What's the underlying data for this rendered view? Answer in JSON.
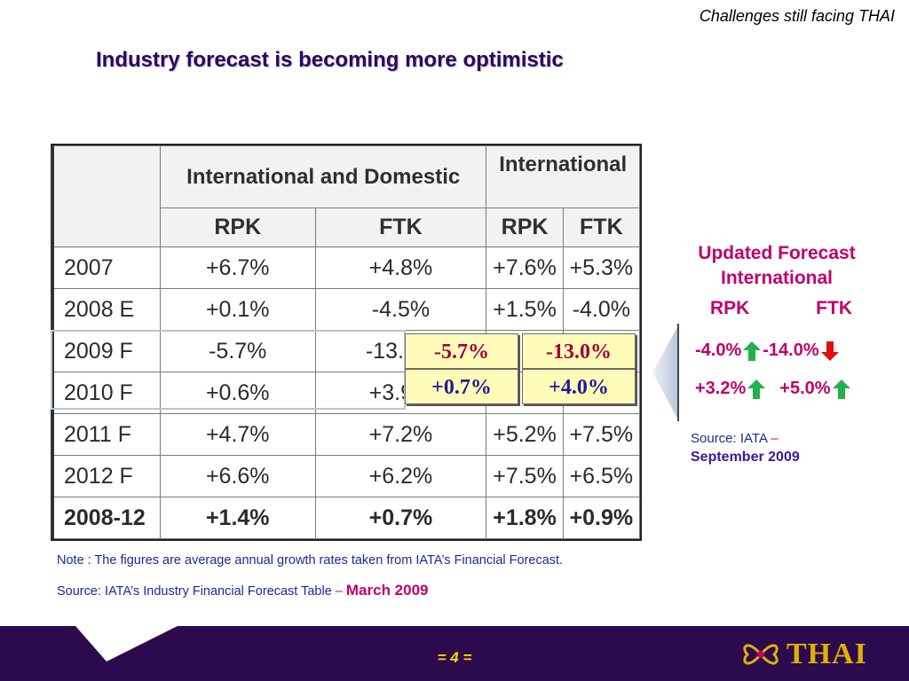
{
  "header": {
    "section_note": "Challenges still facing THAI",
    "title": "Industry forecast is becoming more optimistic"
  },
  "table": {
    "group_headers": [
      "International and Domestic",
      "International"
    ],
    "sub_headers": [
      "RPK",
      "FTK",
      "RPK",
      "FTK"
    ],
    "rows": [
      {
        "year": "2007",
        "values": [
          "+6.7%",
          "+4.8%",
          "+7.6%",
          "+5.3%"
        ]
      },
      {
        "year": "2008 E",
        "values": [
          "+0.1%",
          "-4.5%",
          "+1.5%",
          "-4.0%"
        ]
      },
      {
        "year": "2009 F",
        "values": [
          "-5.7%",
          "-13.0%",
          "",
          ""
        ]
      },
      {
        "year": "2010 F",
        "values": [
          "+0.6%",
          "+3.9%",
          "",
          ""
        ]
      },
      {
        "year": "2011 F",
        "values": [
          "+4.7%",
          "+7.2%",
          "+5.2%",
          "+7.5%"
        ]
      },
      {
        "year": "2012 F",
        "values": [
          "+6.6%",
          "+6.2%",
          "+7.5%",
          "+6.5%"
        ]
      },
      {
        "year": "2008-12",
        "values": [
          "+1.4%",
          "+0.7%",
          "+1.8%",
          "+0.9%"
        ]
      }
    ],
    "overlay": {
      "r2009_rpk": "-5.7%",
      "r2009_ftk": "-13.0%",
      "r2010_rpk": "+0.7%",
      "r2010_ftk": "+4.0%"
    }
  },
  "updated_forecast": {
    "title_line1": "Updated Forecast",
    "title_line2": "International",
    "col_rpk": "RPK",
    "col_ftk": "FTK",
    "row1": {
      "rpk": "-4.0%",
      "rpk_dir": "up",
      "ftk": "-14.0%",
      "ftk_dir": "down"
    },
    "row2": {
      "rpk": "+3.2%",
      "rpk_dir": "up",
      "ftk": "+5.0%",
      "ftk_dir": "up"
    },
    "source_label": "Source: IATA",
    "source_dash": "–",
    "source_date": "September 2009"
  },
  "notes": {
    "note": "Note : The figures are average annual growth rates taken from IATA’s Financial Forecast.",
    "source_label": "Source: IATA’s Industry Financial Forecast Table",
    "source_dash": "–",
    "source_date": "March 2009"
  },
  "footer": {
    "page_number": "= 4 =",
    "logo_text": "THAI"
  },
  "colors": {
    "footer_bg": "#2b0a4e",
    "accent_magenta": "#c0006a",
    "arrow_up": "#22b14c",
    "arrow_down": "#e01010",
    "highlight_yellow": "#fffbb8"
  }
}
